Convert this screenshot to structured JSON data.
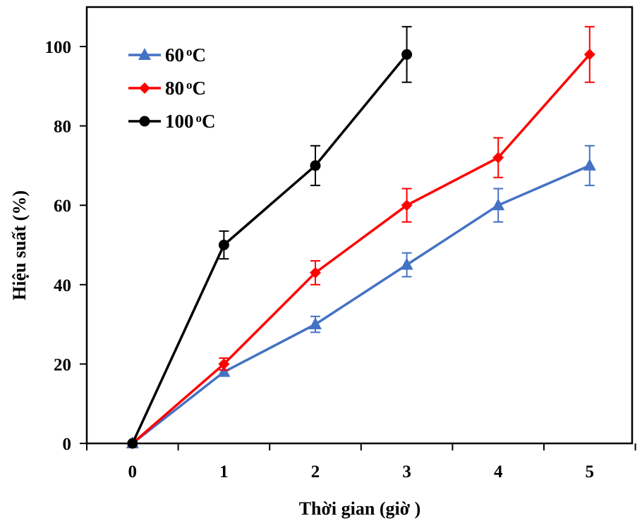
{
  "chart_data": {
    "type": "line",
    "title": "",
    "xlabel": "Thời gian (giờ )",
    "ylabel": "Hiệu suất (%)",
    "categories": [
      "0",
      "1",
      "2",
      "3",
      "4",
      "5"
    ],
    "x": [
      0,
      1,
      2,
      3,
      4,
      5
    ],
    "ylim": [
      0,
      110
    ],
    "yticks": [
      0,
      20,
      40,
      60,
      80,
      100
    ],
    "grid": false,
    "legend_position": "top-left",
    "series": [
      {
        "name": "60",
        "unit": "oC",
        "label": "60oC",
        "color": "#4472C4",
        "marker": "triangle",
        "x": [
          0,
          1,
          2,
          3,
          4,
          5
        ],
        "values": [
          0,
          18,
          30,
          45,
          60,
          70
        ],
        "errors": [
          0,
          0,
          2,
          3,
          4.2,
          5
        ]
      },
      {
        "name": "80",
        "unit": "oC",
        "label": "80oC",
        "color": "#FF0000",
        "marker": "diamond",
        "x": [
          0,
          1,
          2,
          3,
          4,
          5
        ],
        "values": [
          0,
          20,
          43,
          60,
          72,
          98
        ],
        "errors": [
          0,
          1.5,
          3,
          4.2,
          5,
          7
        ]
      },
      {
        "name": "100",
        "unit": "oC",
        "label": "100oC",
        "color": "#000000",
        "marker": "circle",
        "x": [
          0,
          1,
          2,
          3
        ],
        "values": [
          0,
          50,
          70,
          98
        ],
        "errors": [
          0,
          3.5,
          5,
          7
        ]
      }
    ]
  }
}
